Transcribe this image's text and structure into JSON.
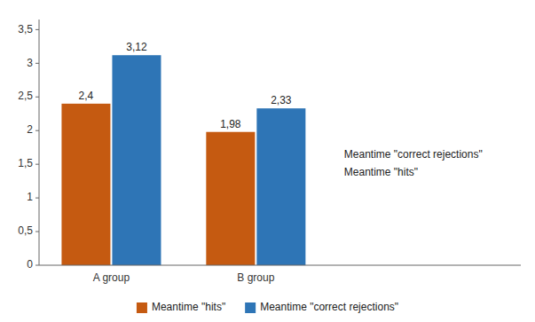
{
  "chart_data": {
    "type": "bar",
    "categories": [
      "A group",
      "B group"
    ],
    "series": [
      {
        "name": "Meantime \"hits\"",
        "color": "#C55A11",
        "values": [
          2.4,
          1.98
        ],
        "value_labels": [
          "2,4",
          "1,98"
        ]
      },
      {
        "name": "Meantime \"correct rejections\"",
        "color": "#2E75B6",
        "values": [
          3.12,
          2.33
        ],
        "value_labels": [
          "3,12",
          "2,33"
        ]
      }
    ],
    "ylim": [
      0,
      3.65
    ],
    "yticks": [
      0,
      {
        "value": 0.5,
        "label": "0,5"
      },
      1,
      {
        "value": 1.5,
        "label": "1,5"
      },
      2,
      {
        "value": 2.5,
        "label": "2,5"
      },
      3,
      {
        "value": 3.5,
        "label": "3,5"
      }
    ],
    "annotations": [
      "Meantime \"correct rejections\"",
      "Meantime \"hits\""
    ],
    "data_labels": true,
    "grid": false,
    "legend": "bottom"
  }
}
